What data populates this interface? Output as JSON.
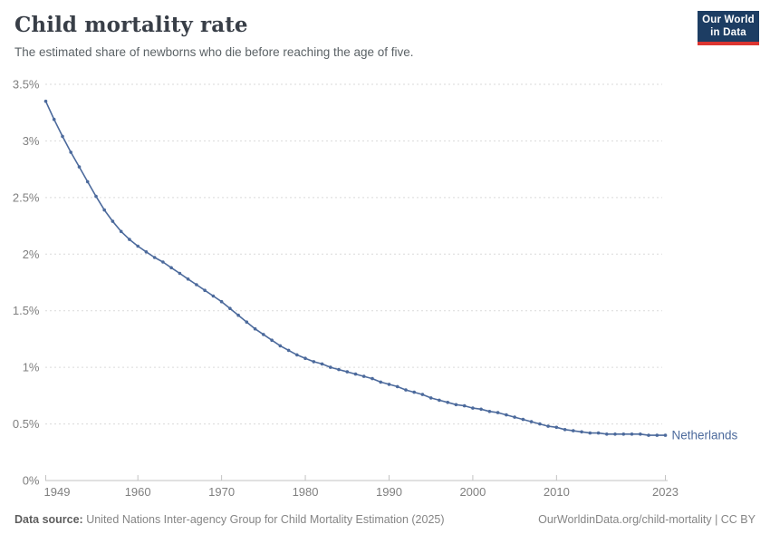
{
  "header": {
    "title": "Child mortality rate",
    "subtitle": "The estimated share of newborns who die before reaching the age of five.",
    "logo": {
      "line1": "Our World",
      "line2": "in Data"
    }
  },
  "chart_data": {
    "type": "line",
    "title": "Child mortality rate",
    "unit": "%",
    "grid": "horizontal dashed gridlines on, no vertical gridlines",
    "legend_position": "end-of-line label at right of last point",
    "xlim": [
      1949,
      2023
    ],
    "ylim": [
      0,
      3.5
    ],
    "x_ticks": [
      1949,
      1960,
      1970,
      1980,
      1990,
      2000,
      2010,
      2023
    ],
    "y_tick_values": [
      0,
      0.5,
      1,
      1.5,
      2,
      2.5,
      3,
      3.5
    ],
    "y_tick_labels": [
      "0%",
      "0.5%",
      "1%",
      "1.5%",
      "2%",
      "2.5%",
      "3%",
      "3.5%"
    ],
    "series": [
      {
        "name": "Netherlands",
        "color": "#4c6a9c",
        "years": [
          1949,
          1950,
          1951,
          1952,
          1953,
          1954,
          1955,
          1956,
          1957,
          1958,
          1959,
          1960,
          1961,
          1962,
          1963,
          1964,
          1965,
          1966,
          1967,
          1968,
          1969,
          1970,
          1971,
          1972,
          1973,
          1974,
          1975,
          1976,
          1977,
          1978,
          1979,
          1980,
          1981,
          1982,
          1983,
          1984,
          1985,
          1986,
          1987,
          1988,
          1989,
          1990,
          1991,
          1992,
          1993,
          1994,
          1995,
          1996,
          1997,
          1998,
          1999,
          2000,
          2001,
          2002,
          2003,
          2004,
          2005,
          2006,
          2007,
          2008,
          2009,
          2010,
          2011,
          2012,
          2013,
          2014,
          2015,
          2016,
          2017,
          2018,
          2019,
          2020,
          2021,
          2022,
          2023
        ],
        "values": [
          3.35,
          3.19,
          3.04,
          2.9,
          2.77,
          2.64,
          2.51,
          2.39,
          2.29,
          2.2,
          2.13,
          2.07,
          2.02,
          1.97,
          1.93,
          1.88,
          1.83,
          1.78,
          1.73,
          1.68,
          1.63,
          1.58,
          1.52,
          1.46,
          1.4,
          1.34,
          1.29,
          1.24,
          1.19,
          1.15,
          1.11,
          1.08,
          1.05,
          1.03,
          1.0,
          0.98,
          0.96,
          0.94,
          0.92,
          0.9,
          0.87,
          0.85,
          0.83,
          0.8,
          0.78,
          0.76,
          0.73,
          0.71,
          0.69,
          0.67,
          0.66,
          0.64,
          0.63,
          0.61,
          0.6,
          0.58,
          0.56,
          0.54,
          0.52,
          0.5,
          0.48,
          0.47,
          0.45,
          0.44,
          0.43,
          0.42,
          0.42,
          0.41,
          0.41,
          0.41,
          0.41,
          0.41,
          0.4,
          0.4,
          0.4
        ]
      }
    ]
  },
  "colors": {
    "line": "#4c6a9c",
    "gridline": "#dadada",
    "axis": "#c3c3c3",
    "tick_label": "#808080",
    "title": "#383e47",
    "subtitle": "#5b6266",
    "logo_bg": "#1d3d63",
    "logo_bar": "#dc3531"
  },
  "footer": {
    "source_label": "Data source:",
    "source_text": " United Nations Inter-agency Group for Child Mortality Estimation (2025)",
    "credit": "OurWorldinData.org/child-mortality | CC BY"
  }
}
